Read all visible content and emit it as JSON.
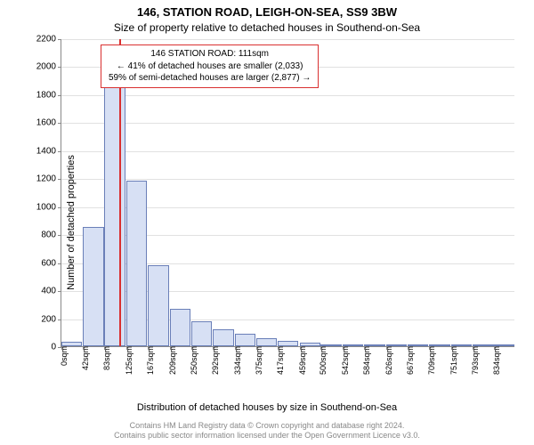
{
  "title_line1": "146, STATION ROAD, LEIGH-ON-SEA, SS9 3BW",
  "title_line2": "Size of property relative to detached houses in Southend-on-Sea",
  "y_axis_label": "Number of detached properties",
  "x_axis_label": "Distribution of detached houses by size in Southend-on-Sea",
  "footer_line1": "Contains HM Land Registry data © Crown copyright and database right 2024.",
  "footer_line2": "Contains public sector information licensed under the Open Government Licence v3.0.",
  "chart": {
    "type": "histogram",
    "background_color": "#ffffff",
    "bar_fill": "#d7e0f4",
    "bar_border": "#6a7fb8",
    "grid_color": "#888888",
    "grid_opacity": 0.25,
    "marker_color": "#d93030",
    "marker_x": 111,
    "ylim": [
      0,
      2200
    ],
    "ytick_step": 200,
    "xlim": [
      0,
      875
    ],
    "bar_width_units": 40,
    "x_ticks": [
      {
        "pos": 0,
        "label": "0sqm"
      },
      {
        "pos": 42,
        "label": "42sqm"
      },
      {
        "pos": 83,
        "label": "83sqm"
      },
      {
        "pos": 125,
        "label": "125sqm"
      },
      {
        "pos": 167,
        "label": "167sqm"
      },
      {
        "pos": 209,
        "label": "209sqm"
      },
      {
        "pos": 250,
        "label": "250sqm"
      },
      {
        "pos": 292,
        "label": "292sqm"
      },
      {
        "pos": 334,
        "label": "334sqm"
      },
      {
        "pos": 375,
        "label": "375sqm"
      },
      {
        "pos": 417,
        "label": "417sqm"
      },
      {
        "pos": 459,
        "label": "459sqm"
      },
      {
        "pos": 500,
        "label": "500sqm"
      },
      {
        "pos": 542,
        "label": "542sqm"
      },
      {
        "pos": 584,
        "label": "584sqm"
      },
      {
        "pos": 626,
        "label": "626sqm"
      },
      {
        "pos": 667,
        "label": "667sqm"
      },
      {
        "pos": 709,
        "label": "709sqm"
      },
      {
        "pos": 751,
        "label": "751sqm"
      },
      {
        "pos": 793,
        "label": "793sqm"
      },
      {
        "pos": 834,
        "label": "834sqm"
      }
    ],
    "bars": [
      {
        "x0": 0,
        "v": 30
      },
      {
        "x0": 42,
        "v": 850
      },
      {
        "x0": 83,
        "v": 2060
      },
      {
        "x0": 125,
        "v": 1180
      },
      {
        "x0": 167,
        "v": 580
      },
      {
        "x0": 209,
        "v": 270
      },
      {
        "x0": 250,
        "v": 180
      },
      {
        "x0": 292,
        "v": 120
      },
      {
        "x0": 334,
        "v": 90
      },
      {
        "x0": 375,
        "v": 60
      },
      {
        "x0": 417,
        "v": 40
      },
      {
        "x0": 459,
        "v": 25
      },
      {
        "x0": 500,
        "v": 15
      },
      {
        "x0": 542,
        "v": 12
      },
      {
        "x0": 584,
        "v": 8
      },
      {
        "x0": 626,
        "v": 6
      },
      {
        "x0": 667,
        "v": 5
      },
      {
        "x0": 709,
        "v": 4
      },
      {
        "x0": 751,
        "v": 3
      },
      {
        "x0": 793,
        "v": 2
      },
      {
        "x0": 834,
        "v": 2
      }
    ]
  },
  "annotation": {
    "line1": "146 STATION ROAD: 111sqm",
    "line2": "← 41% of detached houses are smaller (2,033)",
    "line3": "59% of semi-detached houses are larger (2,877) →",
    "border_color": "#d93030",
    "fontsize": 10
  }
}
